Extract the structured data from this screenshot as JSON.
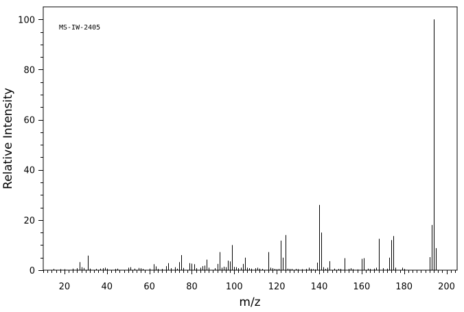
{
  "chart_data": {
    "type": "bar",
    "title": "",
    "annotation": "MS-IW-2405",
    "xlabel": "m/z",
    "ylabel": "Relative Intensity",
    "xlim": [
      10,
      205
    ],
    "ylim": [
      0,
      105
    ],
    "x_major_ticks": [
      20,
      40,
      60,
      80,
      100,
      120,
      140,
      160,
      180,
      200
    ],
    "y_major_ticks": [
      0,
      20,
      40,
      60,
      80,
      100
    ],
    "x_tick_labels": [
      "20",
      "40",
      "60",
      "80",
      "100",
      "120",
      "140",
      "160",
      "180",
      "200"
    ],
    "y_tick_labels": [
      "0",
      "20",
      "40",
      "60",
      "80",
      "100"
    ],
    "grid": false,
    "legend": "none",
    "bar_color": "#000000",
    "x": [
      15,
      18,
      20,
      24,
      26,
      27,
      28,
      29,
      31,
      32,
      35,
      37,
      38,
      39,
      40,
      44,
      45,
      50,
      51,
      53,
      55,
      56,
      57,
      60,
      62,
      63,
      64,
      66,
      68,
      69,
      70,
      72,
      73,
      74,
      75,
      76,
      79,
      80,
      81,
      82,
      84,
      85,
      86,
      87,
      88,
      91,
      92,
      93,
      94,
      95,
      96,
      97,
      98,
      99,
      100,
      101,
      102,
      103,
      104,
      105,
      106,
      107,
      108,
      110,
      111,
      112,
      113,
      116,
      117,
      118,
      119,
      120,
      121,
      122,
      123,
      124,
      125,
      126,
      127,
      129,
      130,
      132,
      134,
      135,
      136,
      137,
      138,
      139,
      140,
      141,
      142,
      143,
      144,
      145,
      147,
      149,
      150,
      152,
      154,
      155,
      156,
      158,
      160,
      161,
      163,
      164,
      166,
      167,
      168,
      170,
      172,
      173,
      174,
      175,
      176,
      179,
      180,
      192,
      193,
      194,
      195
    ],
    "y": [
      0.5,
      0.4,
      0.4,
      0.6,
      0.8,
      3.2,
      1.2,
      0.9,
      5.8,
      0.6,
      0.5,
      0.6,
      0.8,
      1.0,
      0.6,
      0.5,
      0.6,
      1.0,
      1.2,
      0.6,
      0.9,
      0.8,
      0.5,
      0.6,
      2.4,
      1.5,
      0.5,
      0.5,
      1.6,
      2.8,
      0.8,
      1.2,
      0.6,
      3.2,
      6.0,
      0.9,
      2.8,
      2.6,
      2.4,
      0.8,
      1.0,
      1.6,
      1.8,
      4.2,
      1.0,
      0.8,
      2.5,
      7.2,
      1.0,
      1.4,
      1.2,
      3.8,
      3.5,
      10.0,
      1.3,
      1.2,
      0.8,
      1.0,
      2.5,
      5.0,
      1.0,
      0.8,
      0.6,
      0.8,
      1.0,
      0.6,
      0.5,
      7.2,
      1.0,
      0.8,
      0.5,
      0.4,
      0.5,
      11.8,
      5.0,
      14.0,
      0.6,
      0.5,
      0.5,
      0.5,
      0.4,
      0.4,
      0.5,
      1.0,
      0.5,
      0.4,
      0.3,
      3.0,
      26.0,
      15.0,
      1.2,
      0.5,
      1.0,
      3.6,
      0.6,
      0.5,
      0.5,
      4.8,
      0.5,
      0.8,
      0.4,
      0.3,
      4.5,
      4.8,
      0.6,
      0.5,
      0.6,
      1.0,
      12.5,
      0.8,
      0.6,
      5.0,
      12.0,
      13.6,
      1.0,
      1.0,
      0.5,
      5.2,
      18.0,
      100.0,
      8.8
    ]
  }
}
